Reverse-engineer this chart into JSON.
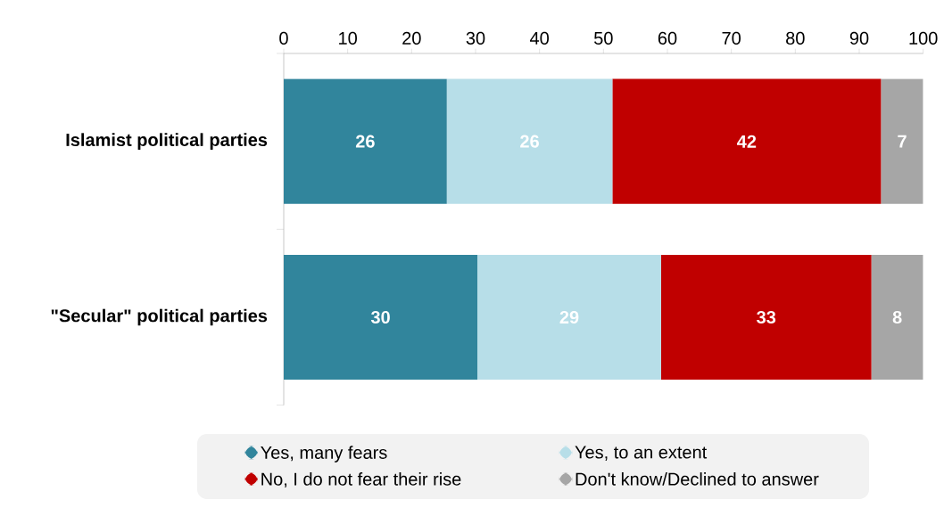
{
  "chart_data": {
    "type": "bar",
    "orientation": "horizontal",
    "stacked": true,
    "categories": [
      "Islamist political parties",
      "\"Secular\" political parties"
    ],
    "series": [
      {
        "name": "Yes, many fears",
        "color": "#31859c",
        "values": [
          25.5,
          30.3
        ],
        "value_labels": [
          "26",
          "30"
        ]
      },
      {
        "name": "Yes, to an extent",
        "color": "#b7dee8",
        "values": [
          25.9,
          28.7
        ],
        "value_labels": [
          "26",
          "29"
        ]
      },
      {
        "name": "No, I do not fear their rise",
        "color": "#c00000",
        "values": [
          42.0,
          32.9
        ],
        "value_labels": [
          "42",
          "33"
        ]
      },
      {
        "name": "Don't know/Declined to answer",
        "color": "#a6a6a6",
        "values": [
          6.6,
          8.1
        ],
        "value_labels": [
          "7",
          "8"
        ]
      }
    ],
    "xlim": [
      0,
      100
    ],
    "xticks": [
      0,
      10,
      20,
      30,
      40,
      50,
      60,
      70,
      80,
      90,
      100
    ],
    "grid": false,
    "legend": "bottom"
  }
}
